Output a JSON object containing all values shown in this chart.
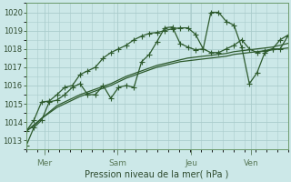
{
  "xlabel": "Pression niveau de la mer( hPa )",
  "bg_color": "#cce8e8",
  "grid_color": "#aacccc",
  "line_color": "#2d5a2d",
  "ylim": [
    1012.5,
    1020.5
  ],
  "yticks": [
    1013,
    1014,
    1015,
    1016,
    1017,
    1018,
    1019,
    1020
  ],
  "day_labels": [
    "Mer",
    "Sam",
    "Jeu",
    "Ven"
  ],
  "day_positions": [
    0.07,
    0.35,
    0.63,
    0.86
  ],
  "series1": [
    1012.7,
    1013.7,
    1014.1,
    1015.1,
    1015.2,
    1015.5,
    1015.9,
    1016.1,
    1015.5,
    1015.5,
    1016.0,
    1015.3,
    1015.9,
    1016.0,
    1015.9,
    1017.3,
    1017.7,
    1018.4,
    1019.15,
    1019.2,
    1018.3,
    1018.1,
    1017.95,
    1018.0,
    1020.0,
    1020.0,
    1019.5,
    1019.3,
    1018.1,
    1016.1,
    1016.7,
    1017.8,
    1018.0,
    1018.0,
    1018.7
  ],
  "series2": [
    1013.5,
    1014.1,
    1015.1,
    1015.15,
    1015.5,
    1015.9,
    1016.0,
    1016.6,
    1016.8,
    1017.0,
    1017.5,
    1017.8,
    1018.0,
    1018.2,
    1018.5,
    1018.7,
    1018.85,
    1018.9,
    1019.0,
    1019.1,
    1019.15,
    1019.15,
    1018.8,
    1018.0,
    1017.8,
    1017.8,
    1018.0,
    1018.2,
    1018.5,
    1018.0,
    1017.8,
    1017.9,
    1018.0,
    1018.5,
    1018.75
  ],
  "series3": [
    1013.5,
    1013.8,
    1014.2,
    1014.5,
    1014.8,
    1015.0,
    1015.2,
    1015.4,
    1015.55,
    1015.7,
    1015.85,
    1016.0,
    1016.2,
    1016.4,
    1016.55,
    1016.7,
    1016.85,
    1017.0,
    1017.1,
    1017.2,
    1017.3,
    1017.35,
    1017.4,
    1017.45,
    1017.5,
    1017.55,
    1017.6,
    1017.7,
    1017.75,
    1017.8,
    1017.85,
    1017.9,
    1017.95,
    1018.0,
    1018.05
  ],
  "series4": [
    1013.5,
    1013.85,
    1014.2,
    1014.55,
    1014.9,
    1015.1,
    1015.3,
    1015.5,
    1015.65,
    1015.8,
    1015.95,
    1016.1,
    1016.3,
    1016.5,
    1016.65,
    1016.8,
    1016.95,
    1017.1,
    1017.2,
    1017.3,
    1017.4,
    1017.5,
    1017.55,
    1017.6,
    1017.65,
    1017.7,
    1017.75,
    1017.85,
    1017.9,
    1017.95,
    1018.0,
    1018.05,
    1018.1,
    1018.2,
    1018.3
  ]
}
